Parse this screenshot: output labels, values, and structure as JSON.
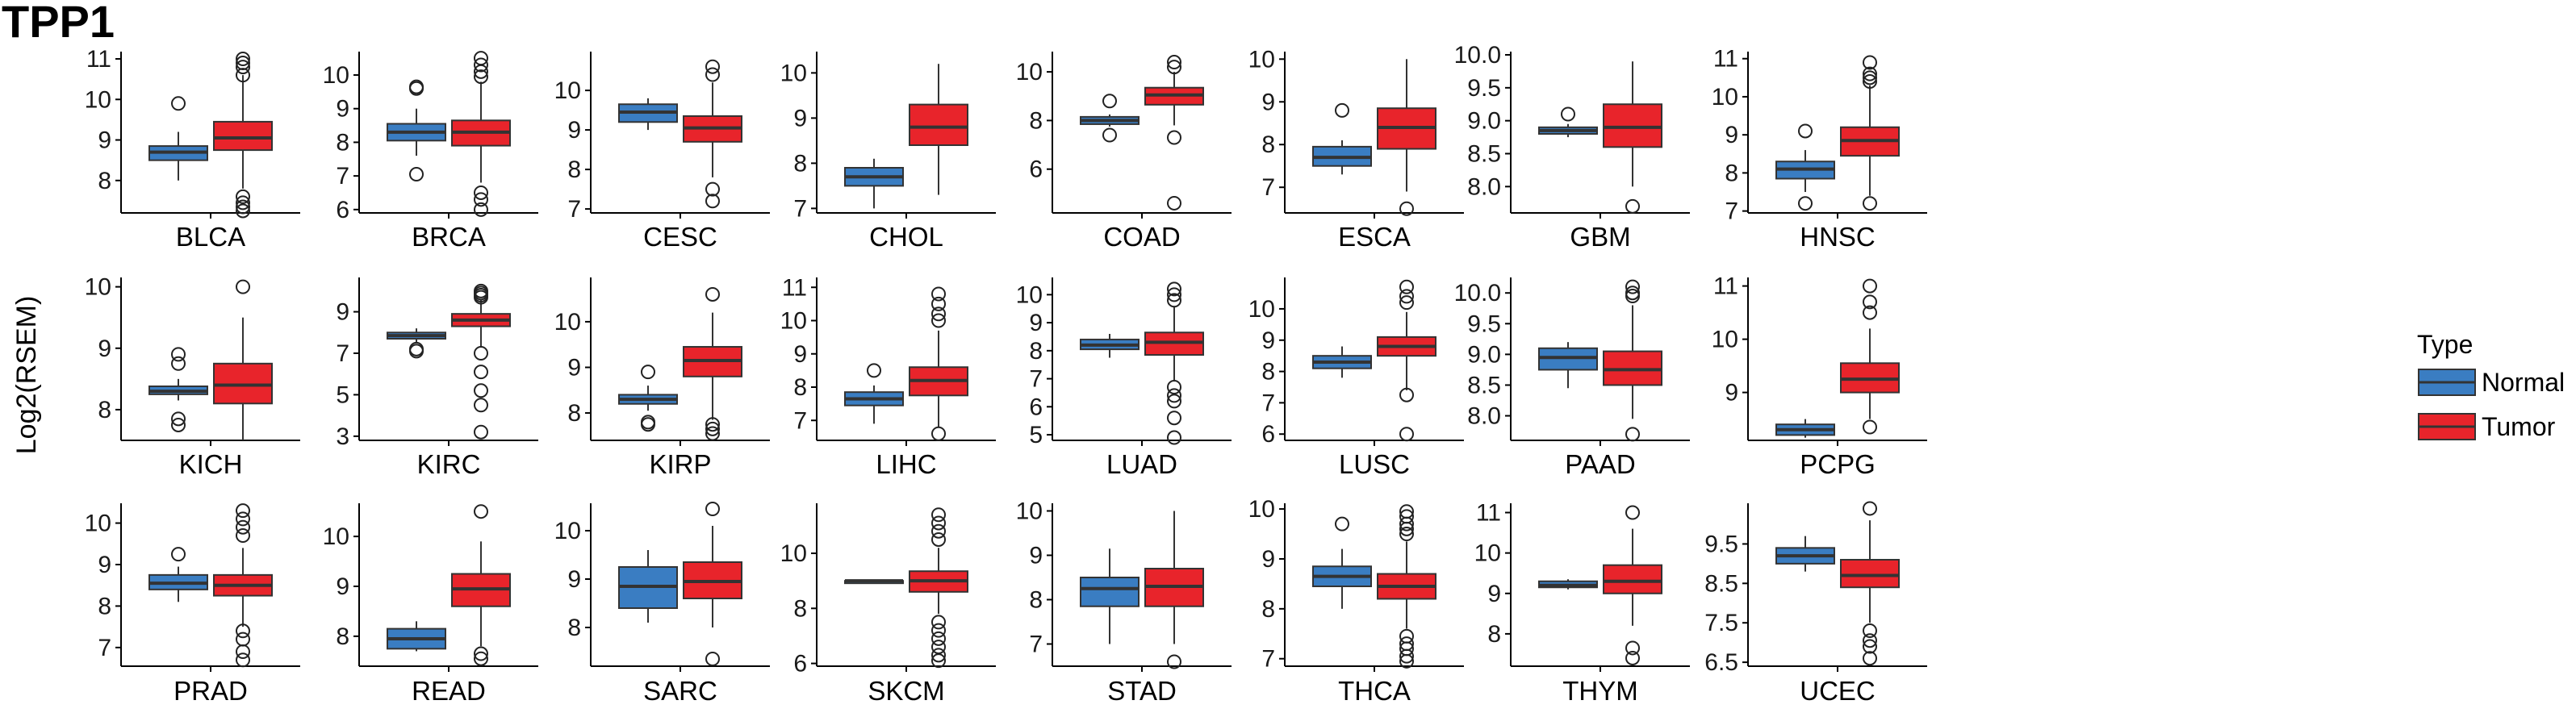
{
  "title": "TPP1",
  "ylabel": "Log2(RSEM)",
  "legend": {
    "title": "Type",
    "items": [
      {
        "label": "Normal",
        "color": "#3a7dc2"
      },
      {
        "label": "Tumor",
        "color": "#e8242b"
      }
    ]
  },
  "chart_data": {
    "type": "box",
    "layout": "3 rows x 8 facet panels",
    "series": [
      "Normal",
      "Tumor"
    ],
    "panels": [
      {
        "name": "BLCA",
        "ylim": [
          7.2,
          11.1
        ],
        "ticks": [
          8,
          9,
          10,
          11
        ],
        "normal": {
          "whislo": 8.0,
          "q1": 8.5,
          "med": 8.7,
          "q3": 8.85,
          "whishi": 9.2,
          "outliers": [
            9.9
          ]
        },
        "tumor": {
          "whislo": 7.8,
          "q1": 8.75,
          "med": 9.05,
          "q3": 9.45,
          "whishi": 10.6,
          "outliers": [
            11.0,
            10.9,
            10.8,
            10.6,
            7.6,
            7.45,
            7.35,
            7.25
          ]
        }
      },
      {
        "name": "BRCA",
        "ylim": [
          5.9,
          10.6
        ],
        "ticks": [
          6,
          7,
          8,
          9,
          10
        ],
        "normal": {
          "whislo": 7.6,
          "q1": 8.05,
          "med": 8.3,
          "q3": 8.55,
          "whishi": 9.0,
          "outliers": [
            9.6,
            9.65,
            7.05
          ]
        },
        "tumor": {
          "whislo": 6.8,
          "q1": 7.9,
          "med": 8.3,
          "q3": 8.65,
          "whishi": 9.8,
          "outliers": [
            10.5,
            10.3,
            10.1,
            9.95,
            6.5,
            6.3,
            6.0
          ]
        }
      },
      {
        "name": "CESC",
        "ylim": [
          6.9,
          10.9
        ],
        "ticks": [
          7,
          8,
          9,
          10
        ],
        "normal": {
          "whislo": 9.0,
          "q1": 9.2,
          "med": 9.45,
          "q3": 9.65,
          "whishi": 9.8,
          "outliers": []
        },
        "tumor": {
          "whislo": 7.8,
          "q1": 8.7,
          "med": 9.05,
          "q3": 9.35,
          "whishi": 10.2,
          "outliers": [
            10.6,
            10.4,
            7.5,
            7.2
          ]
        }
      },
      {
        "name": "CHOL",
        "ylim": [
          6.9,
          10.4
        ],
        "ticks": [
          7,
          8,
          9,
          10
        ],
        "normal": {
          "whislo": 7.0,
          "q1": 7.5,
          "med": 7.7,
          "q3": 7.9,
          "whishi": 8.1,
          "outliers": []
        },
        "tumor": {
          "whislo": 7.3,
          "q1": 8.4,
          "med": 8.8,
          "q3": 9.3,
          "whishi": 10.2,
          "outliers": []
        }
      },
      {
        "name": "COAD",
        "ylim": [
          4.2,
          10.7
        ],
        "ticks": [
          6,
          8,
          10
        ],
        "normal": {
          "whislo": 7.75,
          "q1": 7.85,
          "med": 8.0,
          "q3": 8.15,
          "whishi": 8.25,
          "outliers": [
            8.8,
            7.4
          ]
        },
        "tumor": {
          "whislo": 7.8,
          "q1": 8.65,
          "med": 9.05,
          "q3": 9.35,
          "whishi": 10.0,
          "outliers": [
            10.4,
            10.2,
            7.3,
            4.6
          ]
        }
      },
      {
        "name": "ESCA",
        "ylim": [
          6.4,
          10.1
        ],
        "ticks": [
          7,
          8,
          9,
          10
        ],
        "normal": {
          "whislo": 7.3,
          "q1": 7.5,
          "med": 7.7,
          "q3": 7.95,
          "whishi": 8.1,
          "outliers": [
            8.8
          ]
        },
        "tumor": {
          "whislo": 6.9,
          "q1": 7.9,
          "med": 8.4,
          "q3": 8.85,
          "whishi": 10.0,
          "outliers": [
            6.5
          ]
        }
      },
      {
        "name": "GBM",
        "ylim": [
          7.6,
          10.0
        ],
        "ticks": [
          8.0,
          8.5,
          9.0,
          9.5,
          10.0
        ],
        "normal": {
          "whislo": 8.75,
          "q1": 8.8,
          "med": 8.85,
          "q3": 8.9,
          "whishi": 8.95,
          "outliers": [
            9.1
          ]
        },
        "tumor": {
          "whislo": 8.0,
          "q1": 8.6,
          "med": 8.9,
          "q3": 9.25,
          "whishi": 9.9,
          "outliers": [
            7.7
          ]
        }
      },
      {
        "name": "HNSC",
        "ylim": [
          6.95,
          11.1
        ],
        "ticks": [
          7,
          8,
          9,
          10,
          11
        ],
        "normal": {
          "whislo": 7.5,
          "q1": 7.85,
          "med": 8.1,
          "q3": 8.3,
          "whishi": 8.6,
          "outliers": [
            9.1,
            7.2
          ]
        },
        "tumor": {
          "whislo": 7.4,
          "q1": 8.45,
          "med": 8.85,
          "q3": 9.2,
          "whishi": 10.3,
          "outliers": [
            10.9,
            10.6,
            10.5,
            10.4,
            7.2
          ]
        }
      },
      {
        "name": "KICH",
        "ylim": [
          7.5,
          10.1
        ],
        "ticks": [
          8,
          9,
          10
        ],
        "normal": {
          "whislo": 8.15,
          "q1": 8.25,
          "med": 8.3,
          "q3": 8.38,
          "whishi": 8.5,
          "outliers": [
            8.9,
            8.75,
            7.85,
            7.75
          ]
        },
        "tumor": {
          "whislo": 7.5,
          "q1": 8.1,
          "med": 8.4,
          "q3": 8.75,
          "whishi": 9.5,
          "outliers": [
            10.0
          ]
        }
      },
      {
        "name": "KIRC",
        "ylim": [
          2.8,
          10.5
        ],
        "ticks": [
          3,
          5,
          7,
          9
        ],
        "normal": {
          "whislo": 7.5,
          "q1": 7.7,
          "med": 7.85,
          "q3": 8.0,
          "whishi": 8.2,
          "outliers": [
            7.2,
            7.1
          ]
        },
        "tumor": {
          "whislo": 7.3,
          "q1": 8.3,
          "med": 8.6,
          "q3": 8.9,
          "whishi": 9.6,
          "outliers": [
            10.0,
            9.9,
            9.8,
            9.7,
            7.0,
            6.1,
            5.2,
            4.5,
            3.2
          ]
        }
      },
      {
        "name": "KIRP",
        "ylim": [
          7.4,
          10.9
        ],
        "ticks": [
          8,
          9,
          10
        ],
        "normal": {
          "whislo": 8.05,
          "q1": 8.2,
          "med": 8.3,
          "q3": 8.4,
          "whishi": 8.6,
          "outliers": [
            8.9,
            7.8,
            7.75
          ]
        },
        "tumor": {
          "whislo": 7.85,
          "q1": 8.8,
          "med": 9.15,
          "q3": 9.45,
          "whishi": 10.2,
          "outliers": [
            10.6,
            7.75,
            7.65,
            7.55
          ]
        }
      },
      {
        "name": "LIHC",
        "ylim": [
          6.4,
          11.2
        ],
        "ticks": [
          7,
          8,
          9,
          10,
          11
        ],
        "normal": {
          "whislo": 6.9,
          "q1": 7.45,
          "med": 7.65,
          "q3": 7.85,
          "whishi": 8.05,
          "outliers": [
            8.5
          ]
        },
        "tumor": {
          "whislo": 6.8,
          "q1": 7.75,
          "med": 8.2,
          "q3": 8.6,
          "whishi": 9.7,
          "outliers": [
            10.8,
            10.5,
            10.2,
            10.0,
            6.6
          ]
        }
      },
      {
        "name": "LUAD",
        "ylim": [
          4.8,
          10.5
        ],
        "ticks": [
          5,
          6,
          7,
          8,
          9,
          10
        ],
        "normal": {
          "whislo": 7.75,
          "q1": 8.05,
          "med": 8.2,
          "q3": 8.4,
          "whishi": 8.6,
          "outliers": []
        },
        "tumor": {
          "whislo": 6.9,
          "q1": 7.85,
          "med": 8.3,
          "q3": 8.65,
          "whishi": 9.6,
          "outliers": [
            10.2,
            10.0,
            9.8,
            6.7,
            6.4,
            6.2,
            5.6,
            4.9
          ]
        }
      },
      {
        "name": "LUSC",
        "ylim": [
          5.8,
          10.9
        ],
        "ticks": [
          6,
          7,
          8,
          9,
          10
        ],
        "normal": {
          "whislo": 7.8,
          "q1": 8.1,
          "med": 8.3,
          "q3": 8.5,
          "whishi": 8.8,
          "outliers": []
        },
        "tumor": {
          "whislo": 7.4,
          "q1": 8.5,
          "med": 8.8,
          "q3": 9.1,
          "whishi": 9.9,
          "outliers": [
            10.7,
            10.4,
            10.2,
            7.25,
            6.0
          ]
        }
      },
      {
        "name": "PAAD",
        "ylim": [
          7.6,
          10.2
        ],
        "ticks": [
          8.0,
          8.5,
          9.0,
          9.5,
          10.0
        ],
        "normal": {
          "whislo": 8.45,
          "q1": 8.75,
          "med": 8.95,
          "q3": 9.1,
          "whishi": 9.2,
          "outliers": []
        },
        "tumor": {
          "whislo": 7.95,
          "q1": 8.5,
          "med": 8.75,
          "q3": 9.05,
          "whishi": 9.8,
          "outliers": [
            10.1,
            10.0,
            9.95,
            7.7
          ]
        }
      },
      {
        "name": "PCPG",
        "ylim": [
          8.1,
          11.1
        ],
        "ticks": [
          9,
          10,
          11
        ],
        "normal": {
          "whislo": 8.15,
          "q1": 8.2,
          "med": 8.3,
          "q3": 8.4,
          "whishi": 8.5,
          "outliers": []
        },
        "tumor": {
          "whislo": 8.5,
          "q1": 9.0,
          "med": 9.25,
          "q3": 9.55,
          "whishi": 10.2,
          "outliers": [
            11.0,
            10.7,
            10.5,
            8.35
          ]
        }
      },
      {
        "name": "PRAD",
        "ylim": [
          6.55,
          10.4
        ],
        "ticks": [
          7,
          8,
          9,
          10
        ],
        "normal": {
          "whislo": 8.1,
          "q1": 8.4,
          "med": 8.55,
          "q3": 8.75,
          "whishi": 8.95,
          "outliers": [
            9.25
          ]
        },
        "tumor": {
          "whislo": 7.5,
          "q1": 8.25,
          "med": 8.5,
          "q3": 8.75,
          "whishi": 9.4,
          "outliers": [
            10.3,
            10.1,
            9.9,
            9.7,
            7.4,
            7.2,
            6.9,
            6.7
          ]
        }
      },
      {
        "name": "READ",
        "ylim": [
          7.4,
          10.6
        ],
        "ticks": [
          8,
          9,
          10
        ],
        "normal": {
          "whislo": 7.7,
          "q1": 7.75,
          "med": 7.95,
          "q3": 8.15,
          "whishi": 8.3,
          "outliers": []
        },
        "tumor": {
          "whislo": 7.8,
          "q1": 8.6,
          "med": 8.95,
          "q3": 9.25,
          "whishi": 9.9,
          "outliers": [
            10.5,
            7.65,
            7.55
          ]
        }
      },
      {
        "name": "SARC",
        "ylim": [
          7.2,
          10.5
        ],
        "ticks": [
          8,
          9,
          10
        ],
        "normal": {
          "whislo": 8.1,
          "q1": 8.4,
          "med": 8.85,
          "q3": 9.25,
          "whishi": 9.6,
          "outliers": []
        },
        "tumor": {
          "whislo": 8.0,
          "q1": 8.6,
          "med": 8.95,
          "q3": 9.35,
          "whishi": 10.1,
          "outliers": [
            10.45,
            7.35
          ]
        }
      },
      {
        "name": "SKCM",
        "ylim": [
          5.9,
          11.7
        ],
        "ticks": [
          6,
          8,
          10
        ],
        "normal": {
          "whislo": 9.0,
          "q1": 9.0,
          "med": 9.0,
          "q3": 9.0,
          "whishi": 9.0,
          "outliers": []
        },
        "tumor": {
          "whislo": 7.8,
          "q1": 8.6,
          "med": 9.0,
          "q3": 9.35,
          "whishi": 10.2,
          "outliers": [
            11.4,
            11.1,
            10.8,
            10.5,
            7.5,
            7.2,
            6.9,
            6.6,
            6.3,
            6.1
          ]
        }
      },
      {
        "name": "STAD",
        "ylim": [
          6.5,
          10.1
        ],
        "ticks": [
          7,
          8,
          9,
          10
        ],
        "normal": {
          "whislo": 7.0,
          "q1": 7.85,
          "med": 8.25,
          "q3": 8.5,
          "whishi": 9.15,
          "outliers": []
        },
        "tumor": {
          "whislo": 7.0,
          "q1": 7.85,
          "med": 8.3,
          "q3": 8.7,
          "whishi": 10.0,
          "outliers": [
            6.6
          ]
        }
      },
      {
        "name": "THCA",
        "ylim": [
          6.85,
          10.05
        ],
        "ticks": [
          7,
          8,
          9,
          10
        ],
        "normal": {
          "whislo": 8.0,
          "q1": 8.45,
          "med": 8.65,
          "q3": 8.85,
          "whishi": 9.2,
          "outliers": [
            9.7
          ]
        },
        "tumor": {
          "whislo": 7.6,
          "q1": 8.2,
          "med": 8.45,
          "q3": 8.7,
          "whishi": 9.35,
          "outliers": [
            9.95,
            9.85,
            9.7,
            9.6,
            9.5,
            7.45,
            7.3,
            7.2,
            7.05,
            6.95
          ]
        }
      },
      {
        "name": "THYM",
        "ylim": [
          7.2,
          11.15
        ],
        "ticks": [
          8,
          9,
          10,
          11
        ],
        "normal": {
          "whislo": 9.1,
          "q1": 9.15,
          "med": 9.2,
          "q3": 9.3,
          "whishi": 9.35,
          "outliers": []
        },
        "tumor": {
          "whislo": 8.2,
          "q1": 9.0,
          "med": 9.3,
          "q3": 9.7,
          "whishi": 10.6,
          "outliers": [
            11.0,
            7.65,
            7.4
          ]
        }
      },
      {
        "name": "UCEC",
        "ylim": [
          6.4,
          10.45
        ],
        "ticks": [
          6.5,
          7.5,
          8.5,
          9.5
        ],
        "normal": {
          "whislo": 8.8,
          "q1": 9.0,
          "med": 9.2,
          "q3": 9.4,
          "whishi": 9.7,
          "outliers": []
        },
        "tumor": {
          "whislo": 7.5,
          "q1": 8.4,
          "med": 8.7,
          "q3": 9.1,
          "whishi": 10.1,
          "outliers": [
            10.4,
            7.3,
            7.05,
            6.9,
            6.6
          ]
        }
      }
    ]
  }
}
